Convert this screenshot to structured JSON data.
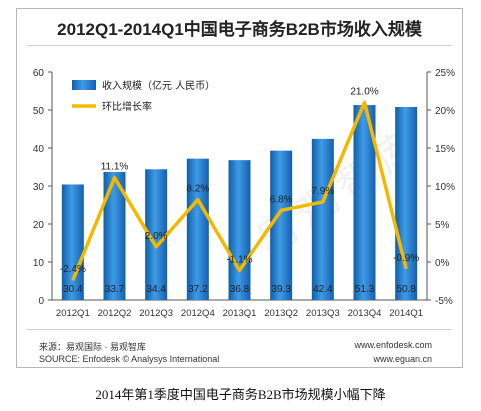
{
  "caption": "2014年第1季度中国电子商务B2B市场规模小幅下降",
  "source_cn": "来源：易观国际 · 易观智库",
  "source_en": "SOURCE: Enfodesk © Analysys International",
  "site1": "www.enfodesk.com",
  "site2": "www.eguan.cn",
  "watermark": "易观智库",
  "chart_data": {
    "type": "bar",
    "title": "2012Q1-2014Q1中国电子商务B2B市场收入规模",
    "categories": [
      "2012Q1",
      "2012Q2",
      "2012Q3",
      "2012Q4",
      "2013Q1",
      "2013Q2",
      "2013Q3",
      "2013Q4",
      "2014Q1"
    ],
    "series": [
      {
        "name": "收入规模（亿元 人民币）",
        "type": "bar",
        "axis": "left",
        "values": [
          30.4,
          33.7,
          34.4,
          37.2,
          36.8,
          39.3,
          42.4,
          51.3,
          50.8
        ],
        "labels": [
          "30.4",
          "33.7",
          "34.4",
          "37.2",
          "36.8",
          "39.3",
          "42.4",
          "51.3",
          "50.8"
        ],
        "color": "#1f78c8"
      },
      {
        "name": "环比增长率",
        "type": "line",
        "axis": "right",
        "values": [
          -2.4,
          11.1,
          2.0,
          8.2,
          -1.1,
          6.8,
          7.9,
          21.0,
          -0.9
        ],
        "labels": [
          "-2.4%",
          "11.1%",
          "2.0%",
          "8.2%",
          "-1.1%",
          "6.8%",
          "7.9%",
          "21.0%",
          "-0.9%"
        ],
        "color": "#f5b800"
      }
    ],
    "left_axis": {
      "min": 0,
      "max": 60,
      "ticks": [
        "0",
        "10",
        "20",
        "30",
        "40",
        "50",
        "60"
      ]
    },
    "right_axis": {
      "min": -5,
      "max": 25,
      "ticks": [
        "-5%",
        "0%",
        "5%",
        "10%",
        "15%",
        "20%",
        "25%"
      ]
    },
    "legend_position": "top-left",
    "grid": false
  }
}
